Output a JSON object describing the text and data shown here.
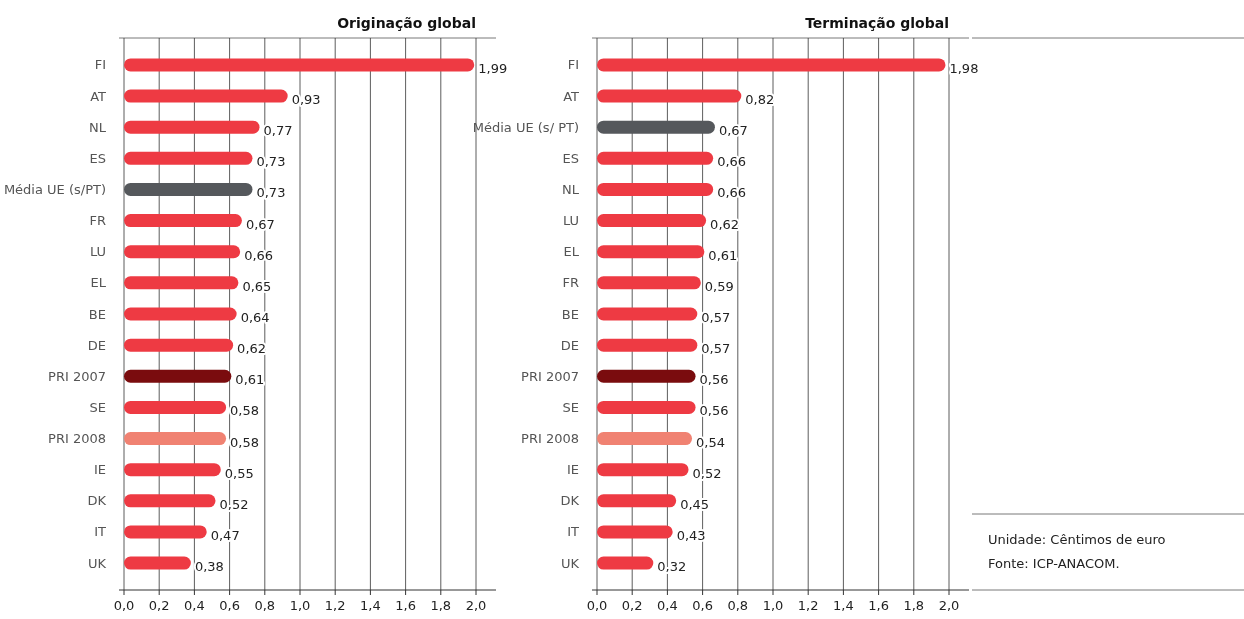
{
  "chart_data": [
    {
      "type": "bar",
      "orientation": "horizontal",
      "title": "Originação global",
      "categories": [
        "FI",
        "AT",
        "NL",
        "ES",
        "Média UE (s/PT)",
        "FR",
        "LU",
        "EL",
        "BE",
        "DE",
        "PRI 2007",
        "SE",
        "PRI 2008",
        "IE",
        "DK",
        "IT",
        "UK"
      ],
      "values": [
        1.99,
        0.93,
        0.77,
        0.73,
        0.73,
        0.67,
        0.66,
        0.65,
        0.64,
        0.62,
        0.61,
        0.58,
        0.58,
        0.55,
        0.52,
        0.47,
        0.38
      ],
      "value_labels": [
        "1,99",
        "0,93",
        "0,77",
        "0,73",
        "0,73",
        "0,67",
        "0,66",
        "0,65",
        "0,64",
        "0,62",
        "0,61",
        "0,58",
        "0,58",
        "0,55",
        "0,52",
        "0,47",
        "0,38"
      ],
      "colors": [
        "#ee3a43",
        "#ee3a43",
        "#ee3a43",
        "#ee3a43",
        "#55585c",
        "#ee3a43",
        "#ee3a43",
        "#ee3a43",
        "#ee3a43",
        "#ee3a43",
        "#7a0c0e",
        "#ee3a43",
        "#f08272",
        "#ee3a43",
        "#ee3a43",
        "#ee3a43",
        "#ee3a43"
      ],
      "xlim": [
        0,
        2
      ],
      "xticks": [
        {
          "value": 0,
          "label": "0,0"
        },
        {
          "value": 0.2,
          "label": "0,2"
        },
        {
          "value": 0.4,
          "label": "0,4"
        },
        {
          "value": 0.6,
          "label": "0,6"
        },
        {
          "value": 0.8,
          "label": "0,8"
        },
        {
          "value": 1,
          "label": "1,0"
        },
        {
          "value": 1.2,
          "label": "1,2"
        },
        {
          "value": 1.4,
          "label": "1,4"
        },
        {
          "value": 1.6,
          "label": "1,6"
        },
        {
          "value": 1.8,
          "label": "1,8"
        },
        {
          "value": 2,
          "label": "2,0"
        }
      ],
      "grid": "x"
    },
    {
      "type": "bar",
      "orientation": "horizontal",
      "title": "Terminação global",
      "categories": [
        "FI",
        "AT",
        "Média UE (s/ PT)",
        "ES",
        "NL",
        "LU",
        "EL",
        "FR",
        "BE",
        "DE",
        "PRI 2007",
        "SE",
        "PRI 2008",
        "IE",
        "DK",
        "IT",
        "UK"
      ],
      "values": [
        1.98,
        0.82,
        0.67,
        0.66,
        0.66,
        0.62,
        0.61,
        0.59,
        0.57,
        0.57,
        0.56,
        0.56,
        0.54,
        0.52,
        0.45,
        0.43,
        0.32
      ],
      "value_labels": [
        "1,98",
        "0,82",
        "0,67",
        "0,66",
        "0,66",
        "0,62",
        "0,61",
        "0,59",
        "0,57",
        "0,57",
        "0,56",
        "0,56",
        "0,54",
        "0,52",
        "0,45",
        "0,43",
        "0,32"
      ],
      "colors": [
        "#ee3a43",
        "#ee3a43",
        "#55585c",
        "#ee3a43",
        "#ee3a43",
        "#ee3a43",
        "#ee3a43",
        "#ee3a43",
        "#ee3a43",
        "#ee3a43",
        "#7a0c0e",
        "#ee3a43",
        "#f08272",
        "#ee3a43",
        "#ee3a43",
        "#ee3a43",
        "#ee3a43"
      ],
      "xlim": [
        0,
        2
      ],
      "xticks": [
        {
          "value": 0,
          "label": "0,0"
        },
        {
          "value": 0.2,
          "label": "0,2"
        },
        {
          "value": 0.4,
          "label": "0,4"
        },
        {
          "value": 0.6,
          "label": "0,6"
        },
        {
          "value": 0.8,
          "label": "0,8"
        },
        {
          "value": 1,
          "label": "1,0"
        },
        {
          "value": 1.2,
          "label": "1,2"
        },
        {
          "value": 1.4,
          "label": "1,4"
        },
        {
          "value": 1.6,
          "label": "1,6"
        },
        {
          "value": 1.8,
          "label": "1,8"
        },
        {
          "value": 2,
          "label": "2,0"
        }
      ],
      "grid": "x"
    },
    {
      "type": "other",
      "annotations": [
        "Unidade: Cêntimos de euro",
        "Fonte: ICP-ANACOM."
      ]
    }
  ]
}
